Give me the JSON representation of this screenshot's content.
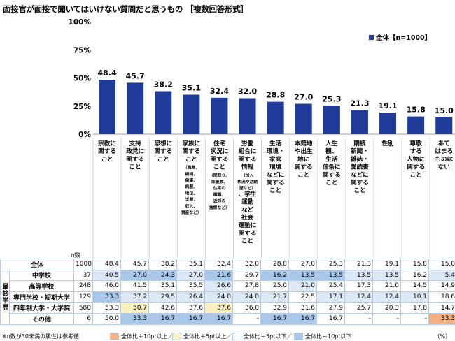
{
  "title": "面接官が面接で聞いてはいけない質問だと思うもの",
  "subtitle": "［複数回答形式］",
  "chart_data": {
    "type": "bar",
    "categories": [
      [
        "宗教に",
        "関する",
        "こと"
      ],
      [
        "支持",
        "政党に",
        "関する",
        "こと"
      ],
      [
        "思想に",
        "関する",
        "こと"
      ],
      [
        "家族に",
        "関する",
        "こと",
        "（職業、",
        "続柄、",
        "健康、",
        "病歴、",
        "地位、",
        "学歴、",
        "収入、",
        "資産など）"
      ],
      [
        "住宅",
        "状況に",
        "関する",
        "こと",
        "（間取り、",
        "部屋数、",
        "住宅の",
        "種類、",
        "近郊の",
        "施設など）"
      ],
      [
        "労働",
        "組合に",
        "関する",
        "情報",
        "（加入",
        "状況や活動",
        "歴など）",
        "、学生",
        "運動",
        "など",
        "社会",
        "運動に",
        "関する",
        "こと"
      ],
      [
        "生活",
        "環境・",
        "家庭",
        "環境",
        "などに",
        "関する",
        "こと"
      ],
      [
        "本籍地",
        "や出生",
        "地に",
        "関する",
        "こと"
      ],
      [
        "人生",
        "観、",
        "生活",
        "信条に",
        "関する",
        "こと"
      ],
      [
        "購読",
        "新聞・",
        "雑誌・",
        "愛読書",
        "などに",
        "関する",
        "こと"
      ],
      [
        "性別"
      ],
      [
        "尊敬",
        "する",
        "人物に",
        "関する",
        "こと"
      ],
      [
        "あて",
        "はまる",
        "ものは",
        "ない"
      ]
    ],
    "values": [
      48.4,
      45.7,
      38.2,
      35.1,
      32.4,
      32.0,
      28.8,
      27.0,
      25.3,
      21.3,
      19.1,
      15.8,
      15.0
    ],
    "yticks": [
      "0%",
      "25%",
      "50%",
      "75%",
      "100%"
    ],
    "ylim": [
      0,
      100
    ],
    "legend": "全体【n=1000】",
    "legend_position": "top-right",
    "bar_color": "#1f3b99"
  },
  "table": {
    "n_header": "n数",
    "group_label": "最終学歴",
    "rows": [
      {
        "label": "全体",
        "n": "1000",
        "values": [
          "48.4",
          "45.7",
          "38.2",
          "35.1",
          "32.4",
          "32.0",
          "28.8",
          "27.0",
          "25.3",
          "21.3",
          "19.1",
          "15.8",
          "15.0"
        ],
        "cls": [
          "",
          "",
          "",
          "",
          "",
          "",
          "",
          "",
          "",
          "",
          "",
          "",
          ""
        ]
      },
      {
        "label": "中学校",
        "n": "37",
        "values": [
          "40.5",
          "27.0",
          "24.3",
          "27.0",
          "21.6",
          "29.7",
          "16.2",
          "13.5",
          "13.5",
          "13.5",
          "13.5",
          "16.2",
          "5.4"
        ],
        "cls": [
          "c-bm5",
          "c-bm10",
          "c-bm10",
          "c-bm5",
          "c-bm10",
          "",
          "c-bm10",
          "c-bm10",
          "c-bm10",
          "c-bm5",
          "c-bm5",
          "",
          "c-bm5"
        ]
      },
      {
        "label": "高等学校",
        "n": "248",
        "values": [
          "46.0",
          "41.5",
          "35.1",
          "35.5",
          "26.6",
          "27.8",
          "25.0",
          "21.0",
          "25.4",
          "17.3",
          "21.0",
          "14.5",
          "14.9"
        ],
        "cls": [
          "",
          "",
          "",
          "",
          "c-bm5",
          "",
          "",
          "c-bm5",
          "",
          "",
          "",
          "",
          ""
        ]
      },
      {
        "label": "専門学校・短期大学",
        "n": "129",
        "values": [
          "33.3",
          "37.2",
          "29.5",
          "26.4",
          "24.0",
          "24.0",
          "21.7",
          "22.5",
          "17.1",
          "12.4",
          "12.4",
          "10.1",
          "18.6"
        ],
        "cls": [
          "c-bm10",
          "c-bm5",
          "c-bm5",
          "c-bm5",
          "c-bm5",
          "c-bm5",
          "c-bm5",
          "",
          "c-bm5",
          "c-bm5",
          "c-bm5",
          "c-bm5",
          ""
        ]
      },
      {
        "label": "四年制大学・大学院",
        "n": "580",
        "values": [
          "53.3",
          "50.7",
          "42.6",
          "37.6",
          "37.6",
          "36.0",
          "32.9",
          "31.6",
          "27.9",
          "25.7",
          "20.3",
          "17.8",
          "14.7"
        ],
        "cls": [
          "",
          "c-bp5",
          "",
          "",
          "c-bp5",
          "",
          "",
          "",
          "",
          "",
          "",
          "",
          ""
        ]
      },
      {
        "label": "その他",
        "n": "6",
        "values": [
          "50.0",
          "33.3",
          "16.7",
          "16.7",
          "16.7",
          "-",
          "16.7",
          "16.7",
          "16.7",
          "-",
          "-",
          "-",
          "33.3"
        ],
        "cls": [
          "",
          "c-bm10",
          "c-bm10",
          "c-bm10",
          "c-bm10",
          "",
          "c-bm10",
          "c-bm10",
          "",
          "",
          "",
          "",
          "c-bp10"
        ]
      }
    ]
  },
  "footer": {
    "note": "※n数が30未満の属性は参考値",
    "legend": [
      {
        "label": "全体比＋10pt以上／",
        "color": "#f4b183"
      },
      {
        "label": "全体比＋5pt以上／",
        "color": "#fdf0c0"
      },
      {
        "label": "全体比－5pt以下／",
        "color": "#dde8f6"
      },
      {
        "label": "全体比－10pt以下",
        "color": "#a9c7e8"
      }
    ],
    "unit": "（%）"
  }
}
